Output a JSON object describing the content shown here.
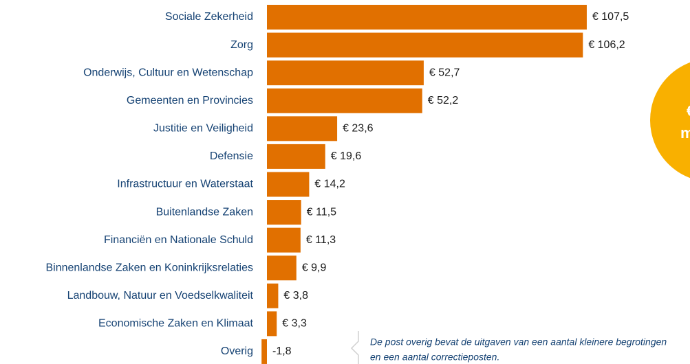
{
  "chart_data": {
    "type": "bar",
    "orientation": "horizontal",
    "categories": [
      "Sociale Zekerheid",
      "Zorg",
      "Onderwijs, Cultuur en Wetenschap",
      "Gemeenten en Provincies",
      "Justitie en Veiligheid",
      "Defensie",
      "Infrastructuur en Waterstaat",
      "Buitenlandse Zaken",
      "Financiën en Nationale Schuld",
      "Binnenlandse Zaken en Koninkrijksrelaties",
      "Landbouw, Natuur en Voedselkwaliteit",
      "Economische Zaken en Klimaat",
      "Overig"
    ],
    "values": [
      107.5,
      106.2,
      52.7,
      52.2,
      23.6,
      19.6,
      14.2,
      11.5,
      11.3,
      9.9,
      3.8,
      3.3,
      -1.8
    ],
    "value_labels": [
      "€ 107,5",
      "€ 106,2",
      "€ 52,7",
      "€ 52,2",
      "€ 23,6",
      "€ 19,6",
      "€ 14,2",
      "€ 11,5",
      "€ 11,3",
      "€ 9,9",
      "€ 3,8",
      "€ 3,3",
      "-1,8"
    ],
    "color": "#e17000",
    "xlim": [
      0,
      120
    ],
    "annotation": [
      "De post overig bevat de uitgaven van een aantal kleinere begrotingen",
      "en een aantal correctieposten."
    ],
    "circle_text": [
      "€",
      "m"
    ]
  }
}
